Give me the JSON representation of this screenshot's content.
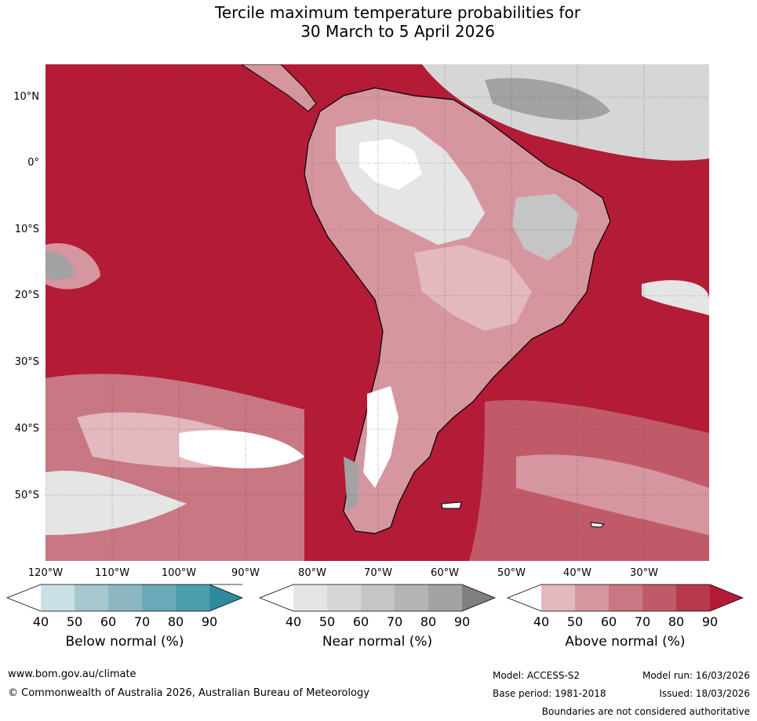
{
  "header": {
    "title_line1": "Tercile maximum temperature probabilities for",
    "title_line2": "30 March to 5 April 2026"
  },
  "map": {
    "lat_labels": [
      "10°N",
      "0°",
      "10°S",
      "20°S",
      "30°S",
      "40°S",
      "50°S"
    ],
    "lon_labels": [
      "120°W",
      "110°W",
      "100°W",
      "90°W",
      "80°W",
      "70°W",
      "60°W",
      "50°W",
      "40°W",
      "30°W"
    ],
    "ocean_color": "#b31b36",
    "land_outline_color": "#000000",
    "border_color": "#808080"
  },
  "colorbars": [
    {
      "title": "Below normal (%)",
      "ticks": [
        "40",
        "50",
        "60",
        "70",
        "80",
        "90"
      ],
      "colors": [
        "#ffffff",
        "#c9e0e6",
        "#a6c7ce",
        "#8bb6c2",
        "#6aaab8",
        "#4a9eae",
        "#2f8aa0"
      ]
    },
    {
      "title": "Near normal (%)",
      "ticks": [
        "40",
        "50",
        "60",
        "70",
        "80",
        "90"
      ],
      "colors": [
        "#ffffff",
        "#e5e5e5",
        "#d6d6d6",
        "#c5c5c5",
        "#b4b4b4",
        "#a2a2a2",
        "#7f7f7f"
      ]
    },
    {
      "title": "Above normal (%)",
      "ticks": [
        "40",
        "50",
        "60",
        "70",
        "80",
        "90"
      ],
      "colors": [
        "#ffffff",
        "#e3b8be",
        "#d6969f",
        "#c97782",
        "#c15a68",
        "#b8394d",
        "#b31b36"
      ]
    }
  ],
  "footer": {
    "website": "www.bom.gov.au/climate",
    "copyright": "© Commonwealth of Australia 2026, Australian Bureau of Meteorology",
    "model": "Model: ACCESS-S2",
    "base_period": "Base period: 1981-2018",
    "model_run": "Model run: 16/03/2026",
    "issued": "Issued: 18/03/2026",
    "disclaimer": "Boundaries are not considered authoritative"
  }
}
